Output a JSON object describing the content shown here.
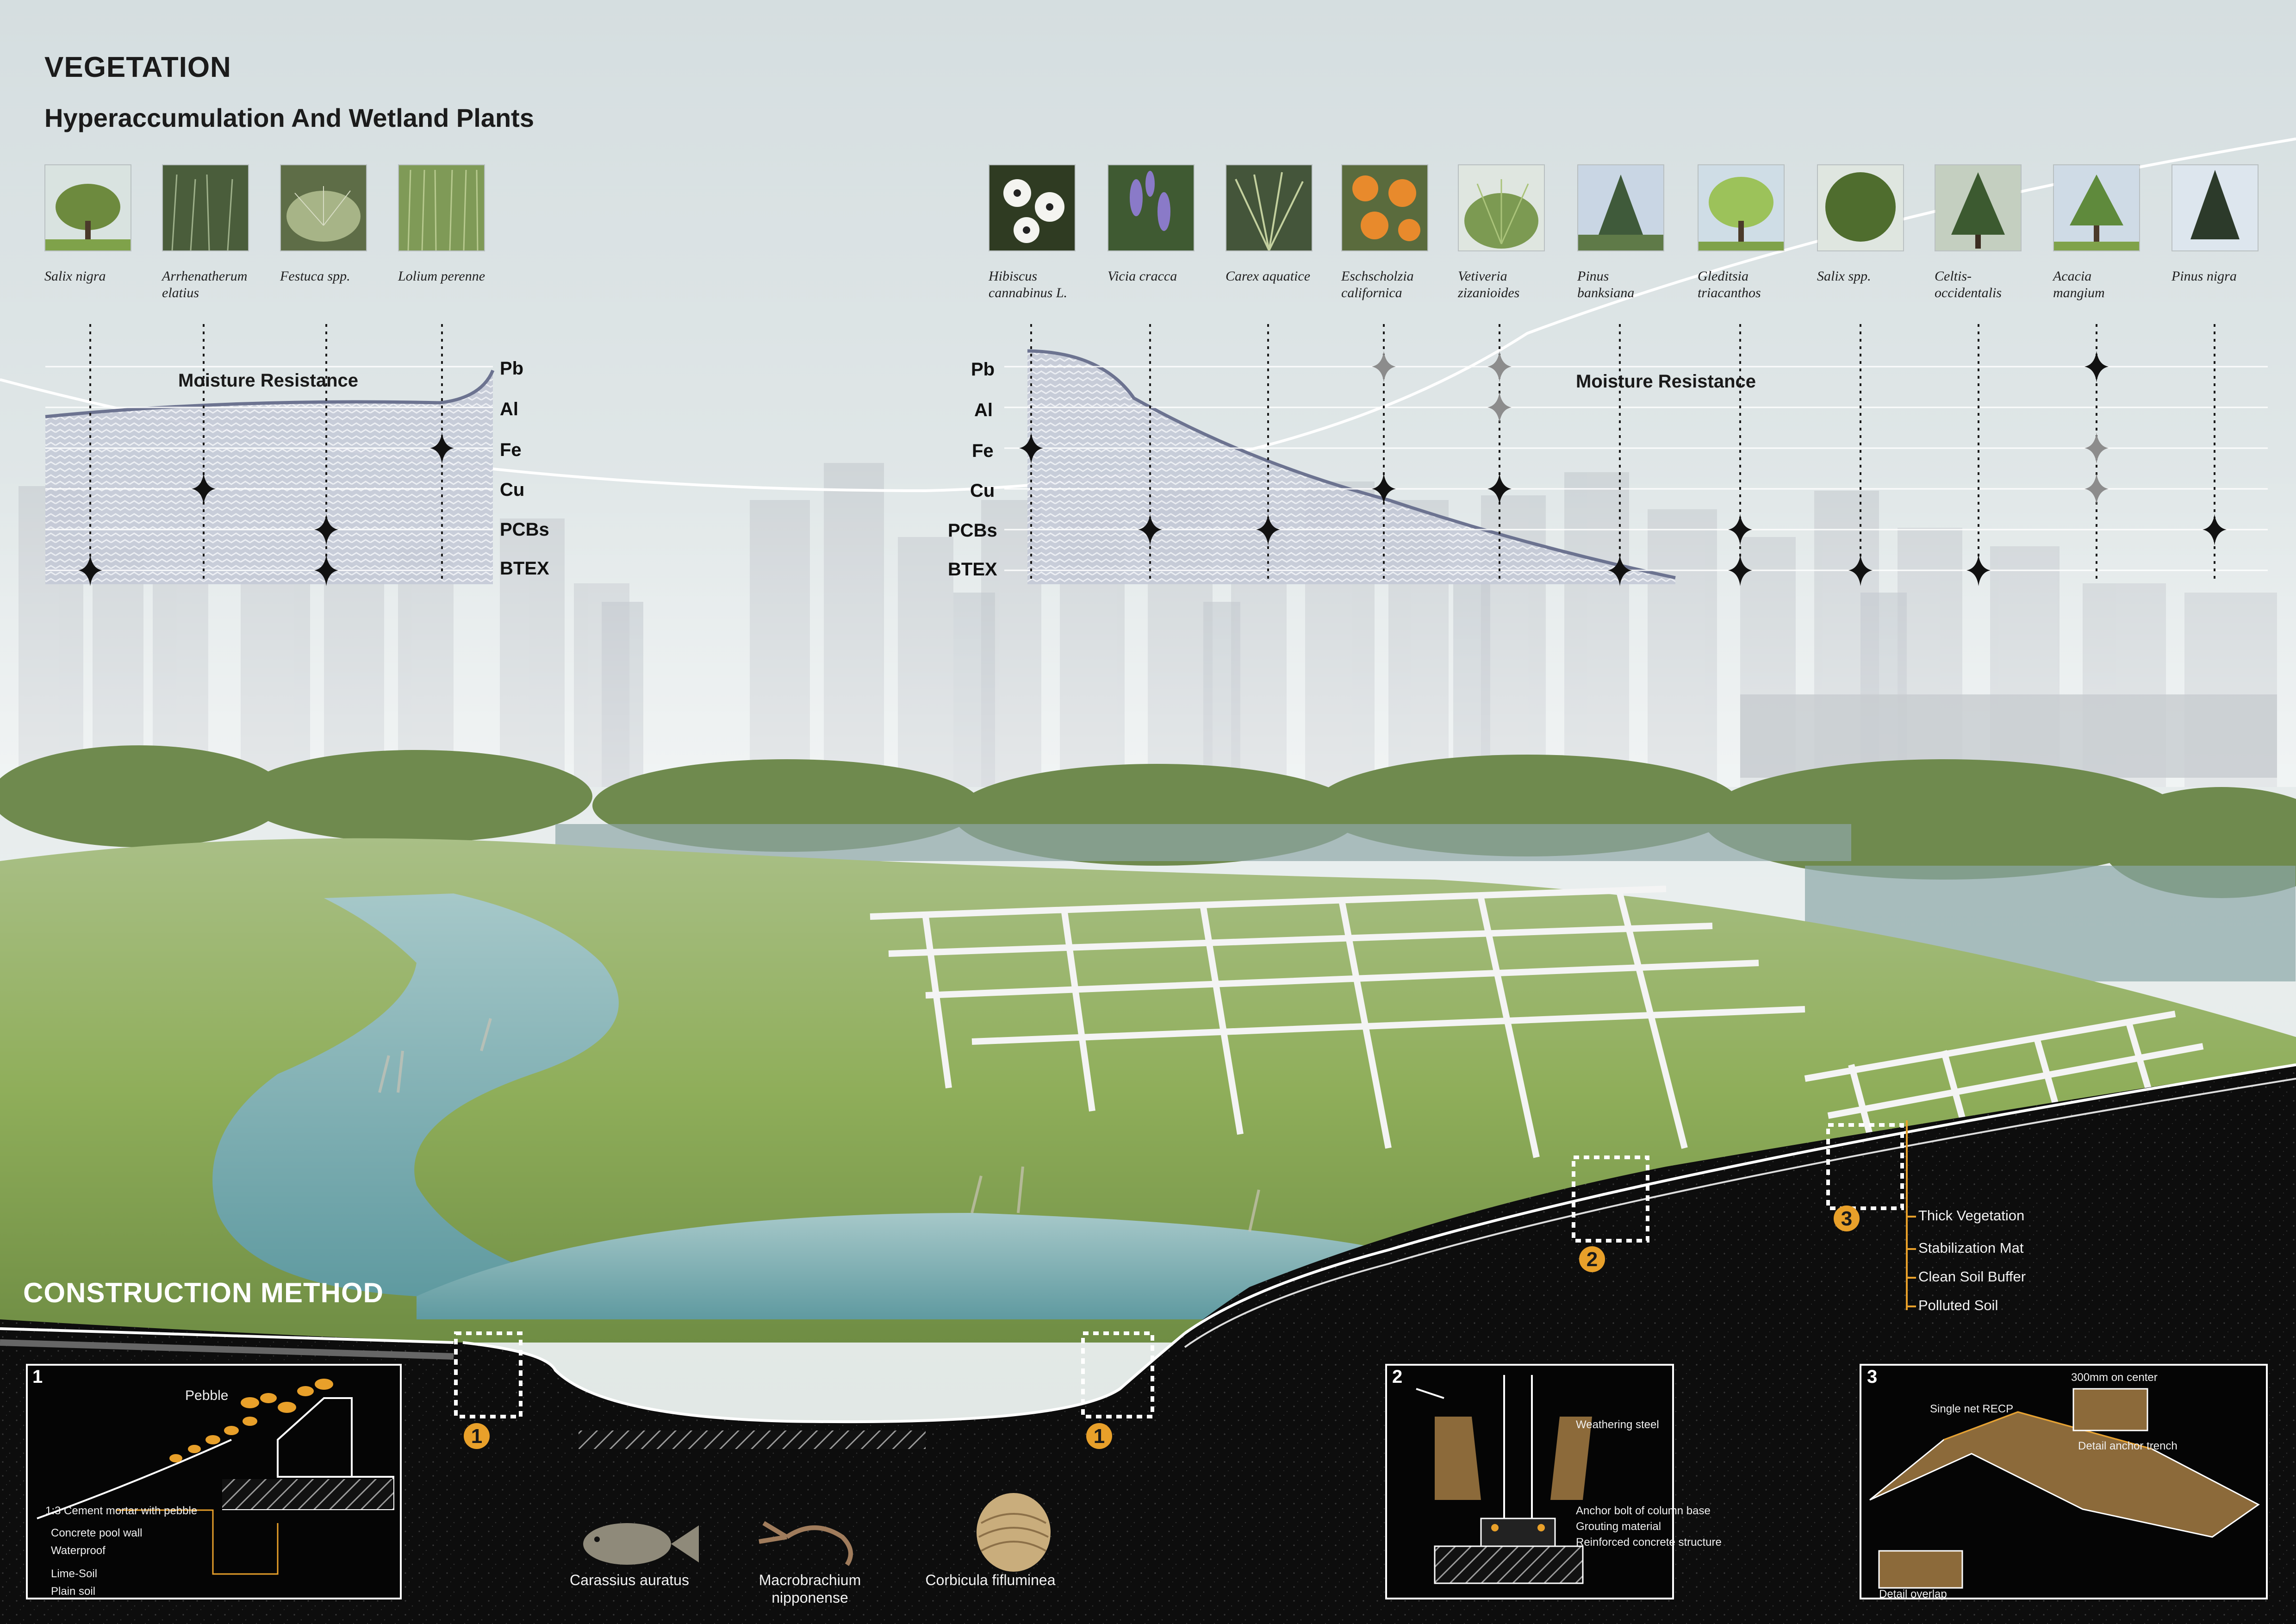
{
  "header": {
    "title": "VEGETATION",
    "subtitle": "Hyperaccumulation And Wetland Plants"
  },
  "plants_left": [
    {
      "name": "Salix nigra"
    },
    {
      "name": "Arrhenatherum\nelatius"
    },
    {
      "name": "Festuca spp."
    },
    {
      "name": "Lolium perenne"
    }
  ],
  "plants_right": [
    {
      "name": "Hibiscus\ncannabinus L."
    },
    {
      "name": "Vicia cracca"
    },
    {
      "name": "Carex aquatice"
    },
    {
      "name": "Eschscholzia\ncalifornica"
    },
    {
      "name": "Vetiveria\nzizanioides"
    },
    {
      "name": "Pinus\nbanksiana"
    },
    {
      "name": "Gleditsia\ntriacanthos"
    },
    {
      "name": "Salix spp."
    },
    {
      "name": "Celtis-occidentalis"
    },
    {
      "name": "Acacia\nmangium"
    },
    {
      "name": "Pinus nigra"
    }
  ],
  "metals": [
    "Pb",
    "Al",
    "Fe",
    "Cu",
    "PCBs",
    "BTEX"
  ],
  "moisture_label": "Moisture Resistance",
  "construction": {
    "title": "CONSTRUCTION METHOD",
    "layers": [
      "Thick Vegetation",
      "Stabilization  Mat",
      "Clean Soil Buffer",
      "Polluted Soil"
    ],
    "callouts": [
      "1",
      "1",
      "2",
      "3"
    ]
  },
  "detail1": {
    "num": "1",
    "pebble": "Pebble",
    "notes": [
      "1:3 Cement mortar with pebble",
      "Concrete pool wall",
      "Waterproof",
      "Lime-Soil",
      "Plain soil"
    ]
  },
  "detail2": {
    "num": "2",
    "notes": [
      "Weathering steel",
      "Anchor bolt of column base",
      "Grouting material",
      "Reinforced concrete structure"
    ]
  },
  "detail3": {
    "num": "3",
    "notes": [
      "300mm on center",
      "Single net RECP",
      "Detail anchor trench",
      "Detail overlap"
    ]
  },
  "species": [
    {
      "name": "Carassius auratus"
    },
    {
      "name": "Macrobrachium\nnipponense"
    },
    {
      "name": "Corbicula fifluminea"
    }
  ],
  "colors": {
    "accent_orange": "#e8a02a",
    "ground_black": "#0b0b0b",
    "water": "#7fb3b8",
    "grass": "#8fae5a",
    "chart_fill": "#b9c0d0",
    "chart_line": "#6c7390"
  },
  "icons": [
    "diamond-marker-icon",
    "callout-badge-icon",
    "fish-icon",
    "shrimp-icon",
    "clam-icon"
  ]
}
